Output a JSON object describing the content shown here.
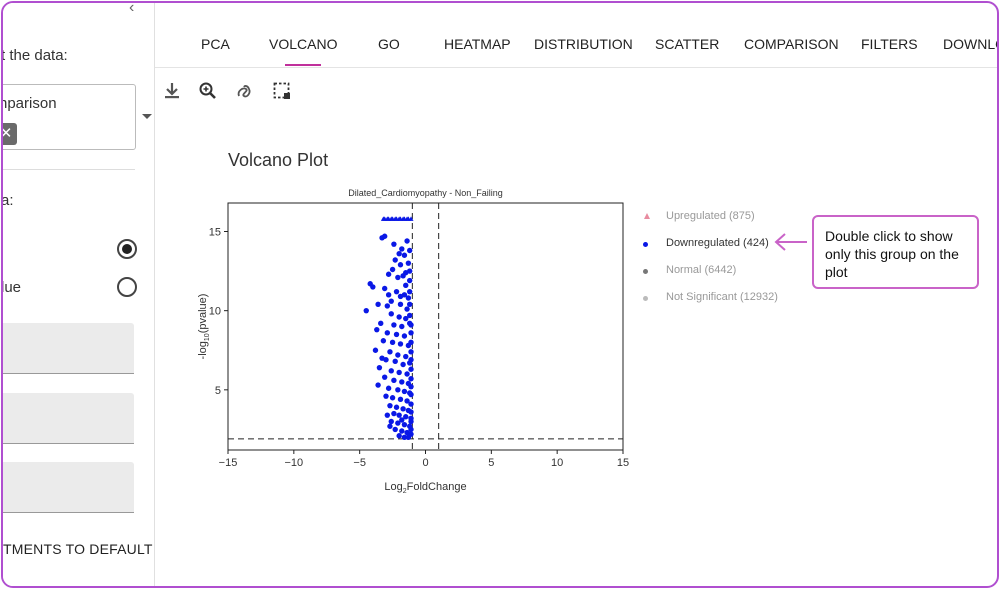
{
  "sidebar": {
    "collapse_glyph": "‹",
    "select_label": "t the data:",
    "select_value": "nparison",
    "chip_close": "✕",
    "radio_group_label": "a:",
    "radio_options": [
      {
        "label": "",
        "selected": true
      },
      {
        "label": "lue",
        "selected": false
      }
    ],
    "reset_label": "TMENTS TO DEFAULT"
  },
  "tabs": [
    {
      "label": "PCA"
    },
    {
      "label": "VOLCANO",
      "active": true
    },
    {
      "label": "GO"
    },
    {
      "label": "HEATMAP"
    },
    {
      "label": "DISTRIBUTION"
    },
    {
      "label": "SCATTER"
    },
    {
      "label": "COMPARISON"
    },
    {
      "label": "FILTERS"
    },
    {
      "label": "DOWNLO"
    }
  ],
  "toolbar": {
    "icons": [
      "download-icon",
      "zoom-in-icon",
      "lasso-icon",
      "box-select-icon"
    ]
  },
  "plot_title": "Volcano Plot",
  "legend": [
    {
      "label": "Upregulated (875)",
      "color": "#e88ca0",
      "marker": "triangle",
      "dim": true
    },
    {
      "label": "Downregulated (424)",
      "color": "#0a18e6",
      "marker": "dot",
      "dim": false
    },
    {
      "label": "Normal (6442)",
      "color": "#777777",
      "marker": "dot",
      "dim": true
    },
    {
      "label": "Not Significant (12932)",
      "color": "#bbbbbb",
      "marker": "dot",
      "dim": true
    }
  ],
  "tooltip": {
    "text": "Double click to show only this group on the plot",
    "color": "#c963c8"
  },
  "chart_data": {
    "type": "scatter",
    "title": "Dilated_Cardiomyopathy - Non_Failing",
    "xlabel": "Log2FoldChange",
    "ylabel": "-log10(pvalue)",
    "xlabel_sub": "2",
    "ylabel_sub": "10",
    "xlim": [
      -15,
      15
    ],
    "ylim": [
      1.2,
      16.8
    ],
    "x_ticks": [
      "−15",
      "−10",
      "−5",
      "0",
      "5",
      "10",
      "15"
    ],
    "x_tick_values": [
      -15,
      -10,
      -5,
      0,
      5,
      10,
      15
    ],
    "y_ticks": [
      "5",
      "10",
      "15"
    ],
    "y_tick_values": [
      5,
      10,
      15
    ],
    "thresholds": {
      "x": [
        -1,
        1
      ],
      "y": 1.9
    },
    "series": [
      {
        "name": "Downregulated",
        "color": "#0a18e6",
        "points": [
          [
            -3.2,
            15.8
          ],
          [
            -2.9,
            15.8
          ],
          [
            -2.6,
            15.8
          ],
          [
            -2.3,
            15.8
          ],
          [
            -2.0,
            15.8
          ],
          [
            -1.7,
            15.8
          ],
          [
            -1.4,
            15.8
          ],
          [
            -1.1,
            15.8
          ],
          [
            -3.1,
            15.8
          ],
          [
            -2.8,
            15.8
          ],
          [
            -2.5,
            15.8
          ],
          [
            -2.2,
            15.8
          ],
          [
            -1.9,
            15.8
          ],
          [
            -1.6,
            15.8
          ],
          [
            -1.3,
            15.8
          ],
          [
            -3.3,
            14.6
          ],
          [
            -3.1,
            14.7
          ],
          [
            -1.8,
            13.9
          ],
          [
            -1.6,
            13.5
          ],
          [
            -1.2,
            13.8
          ],
          [
            -2.3,
            13.2
          ],
          [
            -1.9,
            12.9
          ],
          [
            -1.3,
            13.0
          ],
          [
            -2.5,
            12.6
          ],
          [
            -1.5,
            12.4
          ],
          [
            -2.1,
            12.1
          ],
          [
            -1.7,
            12.2
          ],
          [
            -1.2,
            11.9
          ],
          [
            -4.2,
            11.7
          ],
          [
            -4.0,
            11.5
          ],
          [
            -3.1,
            11.4
          ],
          [
            -2.8,
            11.0
          ],
          [
            -2.2,
            11.2
          ],
          [
            -1.6,
            11.0
          ],
          [
            -1.3,
            10.8
          ],
          [
            -3.6,
            10.4
          ],
          [
            -2.9,
            10.3
          ],
          [
            -1.9,
            10.4
          ],
          [
            -1.4,
            10.1
          ],
          [
            -4.5,
            10.0
          ],
          [
            -2.6,
            9.8
          ],
          [
            -2.0,
            9.6
          ],
          [
            -1.5,
            9.5
          ],
          [
            -3.4,
            9.2
          ],
          [
            -2.4,
            9.1
          ],
          [
            -1.8,
            9.0
          ],
          [
            -1.2,
            9.2
          ],
          [
            -3.7,
            8.8
          ],
          [
            -2.9,
            8.6
          ],
          [
            -2.2,
            8.5
          ],
          [
            -1.6,
            8.4
          ],
          [
            -3.2,
            8.1
          ],
          [
            -2.5,
            8.0
          ],
          [
            -1.9,
            7.9
          ],
          [
            -1.3,
            7.8
          ],
          [
            -3.8,
            7.5
          ],
          [
            -2.7,
            7.4
          ],
          [
            -2.1,
            7.2
          ],
          [
            -1.5,
            7.1
          ],
          [
            -3.0,
            6.9
          ],
          [
            -2.3,
            6.8
          ],
          [
            -1.7,
            6.6
          ],
          [
            -1.2,
            6.7
          ],
          [
            -3.5,
            6.4
          ],
          [
            -2.6,
            6.2
          ],
          [
            -2.0,
            6.1
          ],
          [
            -1.4,
            6.0
          ],
          [
            -3.1,
            5.8
          ],
          [
            -2.4,
            5.6
          ],
          [
            -1.8,
            5.5
          ],
          [
            -1.3,
            5.4
          ],
          [
            -2.8,
            5.1
          ],
          [
            -2.1,
            5.0
          ],
          [
            -1.6,
            4.9
          ],
          [
            -1.2,
            4.8
          ],
          [
            -3.0,
            4.6
          ],
          [
            -2.5,
            4.5
          ],
          [
            -1.9,
            4.4
          ],
          [
            -1.4,
            4.3
          ],
          [
            -2.7,
            4.0
          ],
          [
            -2.2,
            3.9
          ],
          [
            -1.7,
            3.8
          ],
          [
            -1.3,
            3.7
          ],
          [
            -2.4,
            3.5
          ],
          [
            -2.0,
            3.4
          ],
          [
            -1.5,
            3.3
          ],
          [
            -1.1,
            3.2
          ],
          [
            -2.6,
            3.0
          ],
          [
            -2.1,
            2.9
          ],
          [
            -1.6,
            2.8
          ],
          [
            -1.2,
            2.7
          ],
          [
            -2.3,
            2.5
          ],
          [
            -1.8,
            2.4
          ],
          [
            -1.4,
            2.3
          ],
          [
            -1.1,
            2.2
          ],
          [
            -2.0,
            2.1
          ],
          [
            -1.6,
            2.0
          ],
          [
            -1.3,
            2.0
          ],
          [
            -1.1,
            2.5
          ],
          [
            -1.1,
            3.0
          ],
          [
            -1.1,
            3.6
          ],
          [
            -1.1,
            4.1
          ],
          [
            -1.1,
            4.7
          ],
          [
            -1.1,
            5.2
          ],
          [
            -1.1,
            5.7
          ],
          [
            -1.1,
            6.3
          ],
          [
            -1.1,
            6.9
          ],
          [
            -1.1,
            7.4
          ],
          [
            -1.1,
            8.0
          ],
          [
            -1.1,
            8.6
          ],
          [
            -1.1,
            9.1
          ],
          [
            -1.2,
            9.7
          ],
          [
            -1.2,
            10.4
          ],
          [
            -1.2,
            11.2
          ],
          [
            -1.2,
            12.5
          ],
          [
            -2.4,
            14.2
          ],
          [
            -2.0,
            13.6
          ],
          [
            -1.4,
            14.4
          ],
          [
            -2.8,
            12.3
          ],
          [
            -1.9,
            10.9
          ],
          [
            -2.6,
            10.6
          ],
          [
            -1.5,
            11.6
          ],
          [
            -3.3,
            7.0
          ],
          [
            -3.6,
            5.3
          ],
          [
            -2.9,
            3.4
          ],
          [
            -2.7,
            2.7
          ],
          [
            -1.8,
            3.1
          ]
        ]
      }
    ]
  }
}
